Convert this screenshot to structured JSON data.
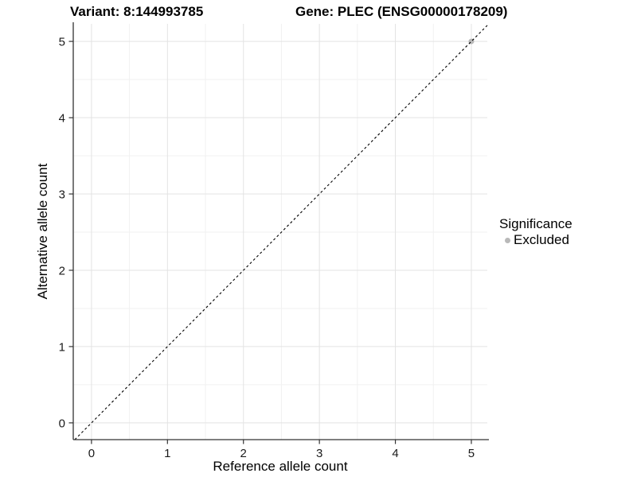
{
  "chart_data": {
    "type": "scatter",
    "title_left": "Variant: 8:144993785",
    "title_right": "Gene: PLEC (ENSG00000178209)",
    "xlabel": "Reference allele count",
    "ylabel": "Alternative allele count",
    "xlim": [
      -0.24,
      5.21
    ],
    "ylim": [
      -0.22,
      5.23
    ],
    "xticks": [
      0,
      1,
      2,
      3,
      4,
      5
    ],
    "yticks": [
      0,
      1,
      2,
      3,
      4,
      5
    ],
    "grid": {
      "show": true,
      "minor_step": 0.5,
      "major_color": "#e3e3e3",
      "minor_color": "#f1f1f1"
    },
    "reference_line": {
      "type": "identity",
      "slope": 1,
      "intercept": 0,
      "style": "dashed",
      "color": "#000000"
    },
    "series": [
      {
        "name": "Excluded",
        "color": "#b9b9b9",
        "points": [
          [
            5,
            5
          ]
        ]
      }
    ],
    "legend": {
      "title": "Significance",
      "position": "right",
      "entries": [
        {
          "label": "Excluded",
          "color": "#b9b9b9"
        }
      ]
    },
    "axis": {
      "line_color": "#333333",
      "tick_color": "#333333",
      "tick_label_color": "#1a1a1a"
    }
  }
}
